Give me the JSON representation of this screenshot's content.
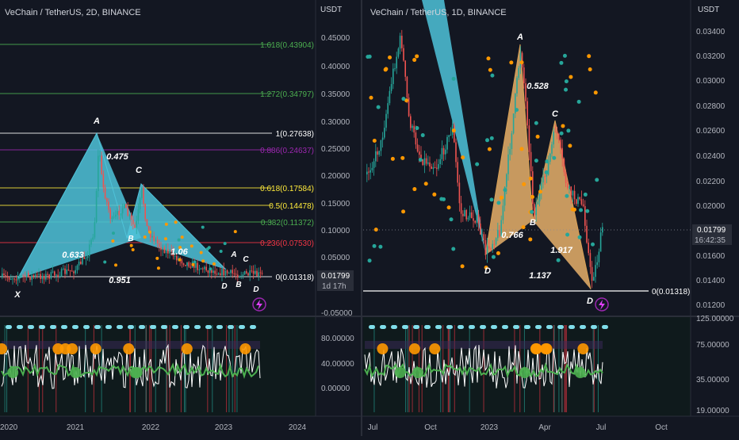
{
  "left_chart": {
    "title": "VeChain / TetherUS, 2D, BINANCE",
    "price_axis_unit": "USDT",
    "price_ticks": [
      "0.45000",
      "0.40000",
      "0.35000",
      "0.30000",
      "0.25000",
      "0.20000",
      "0.15000",
      "0.10000",
      "0.05000",
      "-0.05000"
    ],
    "x_labels": [
      "2020",
      "2021",
      "2022",
      "2023",
      "2024"
    ],
    "fib_levels": [
      {
        "label": "1.618(0.43904)",
        "color": "#4caf50"
      },
      {
        "label": "1.272(0.34797)",
        "color": "#4caf50"
      },
      {
        "label": "1(0.27638)",
        "color": "#ffffff"
      },
      {
        "label": "0.886(0.24637)",
        "color": "#9c27b0"
      },
      {
        "label": "0.618(0.17584)",
        "color": "#ffeb3b"
      },
      {
        "label": "0.5(0.14478)",
        "color": "#ffeb3b"
      },
      {
        "label": "0.382(0.11372)",
        "color": "#4caf50"
      },
      {
        "label": "0.236(0.07530)",
        "color": "#f23645"
      },
      {
        "label": "0(0.01318)",
        "color": "#ffffff"
      }
    ],
    "pattern_points": [
      "X",
      "A",
      "B",
      "C",
      "D"
    ],
    "ratios": [
      "0.475",
      "0.633",
      "0.951",
      "1.06"
    ],
    "mini_pattern_labels": [
      "A",
      "C",
      "B",
      "D",
      "D"
    ],
    "current_price": "0.01799",
    "countdown": "1d 17h",
    "osc_ticks": [
      "80.00000",
      "40.00000",
      "0.00000"
    ]
  },
  "right_chart": {
    "title": "VeChain / TetherUS, 1D, BINANCE",
    "price_axis_unit": "USDT",
    "price_ticks": [
      "0.03400",
      "0.03200",
      "0.03000",
      "0.02800",
      "0.02600",
      "0.02400",
      "0.02200",
      "0.02000",
      "0.01600",
      "0.01400",
      "0.01200"
    ],
    "x_labels": [
      "Jul",
      "Oct",
      "2023",
      "Apr",
      "Jul",
      "Oct"
    ],
    "pattern_points": [
      "A",
      "B",
      "C",
      "D",
      "D"
    ],
    "ratios": [
      "0.528",
      "0.766",
      "1.917",
      "1.137"
    ],
    "zero_level": "0(0.01318)",
    "current_price": "0.01799",
    "countdown": "16:42:35",
    "osc_ticks": [
      "125.00000",
      "75.00000",
      "35.00000",
      "19.00000"
    ]
  },
  "colors": {
    "background": "#131722",
    "harmonic_blue": "#4fc3d9",
    "harmonic_orange": "#e8b06a",
    "candle_up": "#26a69a",
    "candle_down": "#ef5350",
    "osc_line": "#ffffff",
    "osc_fill_green": "#2e7d32",
    "osc_dot_orange": "#ff9800",
    "osc_dot_blue": "#80deea"
  },
  "icons": [
    "lightning-icon"
  ]
}
